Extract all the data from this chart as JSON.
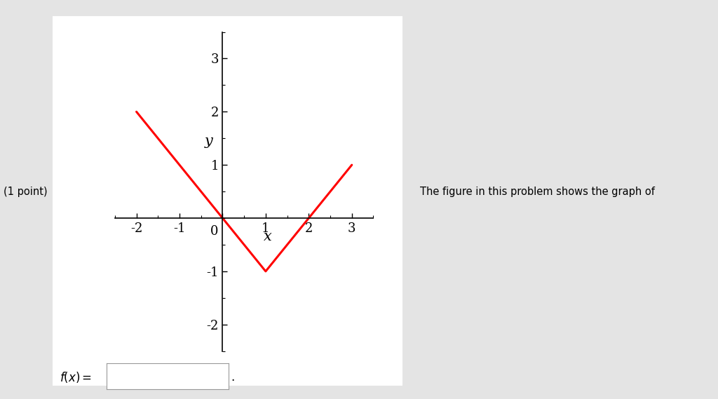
{
  "title": "",
  "xlabel": "x",
  "ylabel": "y",
  "xlim": [
    -2.5,
    3.5
  ],
  "ylim": [
    -2.5,
    3.5
  ],
  "xticks": [
    -2,
    -1,
    0,
    1,
    2,
    3
  ],
  "yticks": [
    -2,
    -1,
    1,
    2,
    3
  ],
  "line_color": "#ff0000",
  "line_width": 2.2,
  "x_data": [
    -2.0,
    0.0,
    1.0,
    2.0,
    3.0
  ],
  "y_data": [
    2.0,
    0.0,
    -1.0,
    0.0,
    1.0
  ],
  "background_color": "#ffffff",
  "outer_background": "#e4e4e4",
  "label_fontsize": 15,
  "tick_fontsize": 13,
  "side_text": "The figure in this problem shows the graph of",
  "point_text": "(1 point)"
}
